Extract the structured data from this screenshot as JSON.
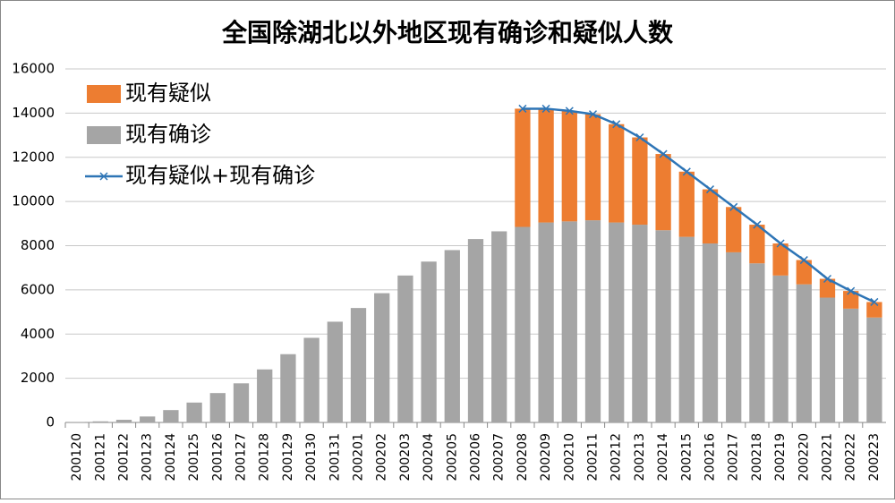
{
  "chart_data": {
    "type": "bar",
    "stacked": true,
    "title": "全国除湖北以外地区现有确诊和疑似人数",
    "categories": [
      "200120",
      "200121",
      "200122",
      "200123",
      "200124",
      "200125",
      "200126",
      "200127",
      "200128",
      "200129",
      "200130",
      "200131",
      "200201",
      "200202",
      "200203",
      "200204",
      "200205",
      "200206",
      "200207",
      "200208",
      "200209",
      "200210",
      "200211",
      "200212",
      "200213",
      "200214",
      "200215",
      "200216",
      "200217",
      "200218",
      "200219",
      "200220",
      "200221",
      "200222",
      "200223"
    ],
    "series": [
      {
        "name": "现有确诊",
        "type": "bar",
        "color": "#a5a5a5",
        "values": [
          10,
          50,
          120,
          270,
          560,
          900,
          1330,
          1770,
          2400,
          3090,
          3830,
          4560,
          5180,
          5850,
          6650,
          7280,
          7800,
          8300,
          8650,
          8850,
          9050,
          9100,
          9150,
          9050,
          8950,
          8700,
          8400,
          8100,
          7700,
          7200,
          6650,
          6250,
          5650,
          5150,
          4750
        ]
      },
      {
        "name": "现有疑似",
        "type": "bar",
        "color": "#ed7d31",
        "values": [
          null,
          null,
          null,
          null,
          null,
          null,
          null,
          null,
          null,
          null,
          null,
          null,
          null,
          null,
          null,
          null,
          null,
          null,
          null,
          5350,
          5150,
          5000,
          4800,
          4450,
          3950,
          3450,
          2950,
          2450,
          2050,
          1750,
          1450,
          1100,
          850,
          800,
          700
        ]
      },
      {
        "name": "现有疑似+现有确诊",
        "type": "line",
        "color": "#2e75b6",
        "values": [
          null,
          null,
          null,
          null,
          null,
          null,
          null,
          null,
          null,
          null,
          null,
          null,
          null,
          null,
          null,
          null,
          null,
          null,
          null,
          14200,
          14200,
          14100,
          13950,
          13500,
          12900,
          12150,
          11350,
          10550,
          9750,
          8950,
          8100,
          7350,
          6500,
          5950,
          5450
        ]
      }
    ],
    "legend_order": [
      1,
      0,
      2
    ],
    "legend": "top-left",
    "ylim": [
      0,
      16000
    ],
    "yticks": [
      0,
      2000,
      4000,
      6000,
      8000,
      10000,
      12000,
      14000,
      16000
    ],
    "grid": true
  }
}
